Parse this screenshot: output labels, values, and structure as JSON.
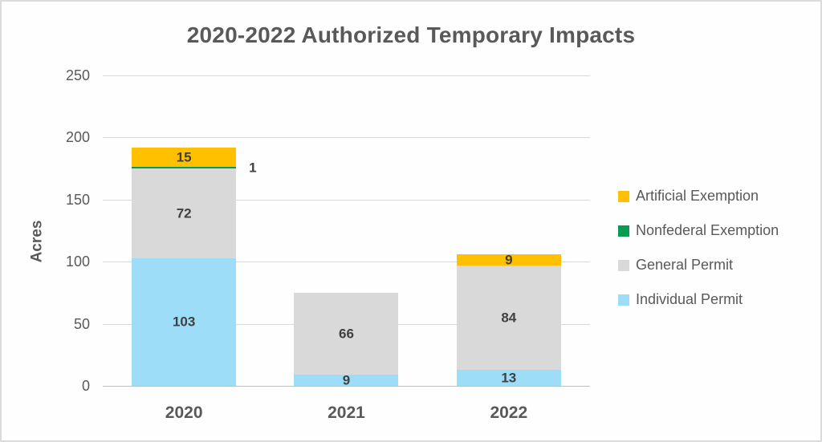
{
  "title": "2020-2022 Authorized Temporary Impacts",
  "colors": {
    "background": "#FEFEFE",
    "frame_border": "#DBDBDB",
    "title_text": "#595959",
    "axis_text": "#595959",
    "data_label_text": "#404040",
    "gridline": "#D9D9D9",
    "baseline": "#BFBFBF",
    "artificial_exemption": "#FFC000",
    "nonfederal_exemption": "#089B52",
    "general_permit": "#D9D9D9",
    "individual_permit": "#9EDDF8"
  },
  "chart_data": {
    "type": "bar",
    "stacked": true,
    "title": "2020-2022 Authorized Temporary Impacts",
    "xlabel": "",
    "ylabel": "Acres",
    "categories": [
      "2020",
      "2021",
      "2022"
    ],
    "series": [
      {
        "name": "Individual Permit",
        "color": "#9EDDF8",
        "values": [
          103,
          9,
          13
        ]
      },
      {
        "name": "General Permit",
        "color": "#D9D9D9",
        "values": [
          72,
          66,
          84
        ]
      },
      {
        "name": "Nonfederal Exemption",
        "color": "#089B52",
        "values": [
          1,
          0,
          0
        ]
      },
      {
        "name": "Artificial Exemption",
        "color": "#FFC000",
        "values": [
          15,
          0,
          9
        ]
      }
    ],
    "totals": [
      191,
      75,
      106
    ],
    "data_labels_shown": [
      "103",
      "72",
      "1",
      "15",
      "9",
      "66",
      "13",
      "84",
      "9"
    ],
    "ylim": [
      0,
      250
    ],
    "yticks": [
      0,
      50,
      100,
      150,
      200,
      250
    ],
    "grid": true,
    "legend_position": "right",
    "legend_order": [
      "Artificial Exemption",
      "Nonfederal Exemption",
      "General Permit",
      "Individual Permit"
    ]
  }
}
